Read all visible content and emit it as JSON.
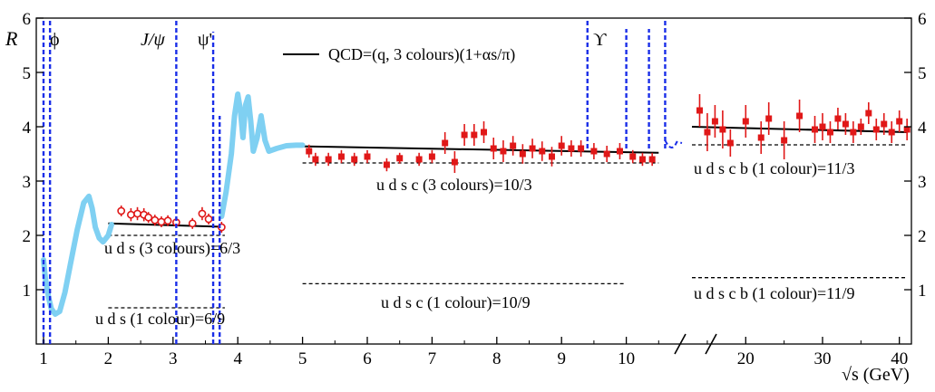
{
  "chart_data": {
    "type": "scatter",
    "title": "",
    "ylabel": "R",
    "xlabel": "√s (GeV)",
    "ylim": [
      0,
      6
    ],
    "x_axis_low": {
      "range": [
        1,
        10.8
      ],
      "ticks": [
        1,
        2,
        3,
        4,
        5,
        6,
        7,
        8,
        9,
        10
      ]
    },
    "x_axis_high": {
      "range": [
        13,
        41
      ],
      "ticks": [
        20,
        30,
        40
      ]
    },
    "y_ticks": [
      1,
      2,
      3,
      4,
      5,
      6
    ],
    "axis_break": "between 10.8 and 13 GeV (double slash)",
    "legend_text": "QCD=(q, 3 colours)(1+αs/π)",
    "resonances": [
      {
        "name": "ϕ",
        "x": 1.02
      },
      {
        "name": "J/ψ",
        "x": 3.1
      },
      {
        "name": "ψ'",
        "x": 3.69
      },
      {
        "name": "ϒ",
        "x": 9.46
      }
    ],
    "annotations": [
      {
        "text": "u d s (3 colours)=6/3",
        "y": 2.0,
        "x_range": [
          2.0,
          3.8
        ]
      },
      {
        "text": "u d s (1 colour)=6/9",
        "y": 0.667,
        "x_range": [
          2.0,
          3.8
        ]
      },
      {
        "text": "u d s c (3 colours)=10/3",
        "y": 3.333,
        "x_range": [
          5.0,
          10.5
        ]
      },
      {
        "text": "u d s c (1 colour)=10/9",
        "y": 1.111,
        "x_range": [
          5.0,
          10.0
        ]
      },
      {
        "text": "u d s c b (1 colour)=11/3",
        "y": 3.667,
        "x_range": [
          13,
          41
        ]
      },
      {
        "text": "u d s c b (1 colour)=11/9",
        "y": 1.222,
        "x_range": [
          13,
          41
        ]
      }
    ],
    "series": [
      {
        "style": "qcd-solid-line",
        "segments": [
          {
            "x": [
              2.0,
              3.7
            ],
            "y": [
              2.22,
              2.16
            ]
          },
          {
            "x": [
              5.0,
              10.5
            ],
            "y": [
              3.64,
              3.52
            ]
          },
          {
            "x": [
              13,
              41
            ],
            "y": [
              4.0,
              3.9
            ]
          }
        ]
      },
      {
        "style": "low-energy-curve",
        "x": [
          1.0,
          1.03,
          1.08,
          1.12,
          1.18,
          1.25,
          1.33,
          1.42,
          1.52,
          1.62,
          1.7,
          1.75,
          1.8,
          1.86,
          1.92,
          2.0,
          2.05
        ],
        "y": [
          1.55,
          1.2,
          0.85,
          0.65,
          0.55,
          0.6,
          0.95,
          1.5,
          2.1,
          2.6,
          2.72,
          2.5,
          2.15,
          1.95,
          1.88,
          2.0,
          2.2
        ]
      },
      {
        "style": "charm-threshold-curve",
        "x": [
          3.75,
          3.82,
          3.9,
          3.95,
          4.0,
          4.04,
          4.08,
          4.12,
          4.16,
          4.2,
          4.24,
          4.3,
          4.36,
          4.42,
          4.48,
          4.6,
          4.75,
          4.9,
          5.0
        ],
        "y": [
          2.35,
          2.8,
          3.5,
          4.2,
          4.6,
          4.3,
          3.8,
          4.4,
          4.55,
          4.1,
          3.55,
          3.8,
          4.2,
          3.75,
          3.55,
          3.6,
          3.65,
          3.66,
          3.66
        ]
      },
      {
        "style": "open-circles",
        "x": [
          2.2,
          2.35,
          2.45,
          2.55,
          2.62,
          2.72,
          2.82,
          2.92,
          3.05,
          3.3,
          3.45,
          3.55,
          3.75
        ],
        "y": [
          2.45,
          2.38,
          2.4,
          2.38,
          2.33,
          2.28,
          2.25,
          2.27,
          2.24,
          2.22,
          2.4,
          2.3,
          2.15
        ],
        "err": [
          0.1,
          0.12,
          0.12,
          0.12,
          0.1,
          0.1,
          0.1,
          0.1,
          0.1,
          0.1,
          0.12,
          0.1,
          0.1
        ]
      },
      {
        "style": "filled-squares-low",
        "x": [
          5.1,
          5.2,
          5.4,
          5.6,
          5.8,
          6.0,
          6.3,
          6.5,
          6.8,
          7.0,
          7.2,
          7.35,
          7.5,
          7.65,
          7.8,
          7.95,
          8.1,
          8.25,
          8.4,
          8.55,
          8.7,
          8.85,
          9.0,
          9.15,
          9.3,
          9.5,
          9.7,
          9.9,
          10.1,
          10.25,
          10.4
        ],
        "y": [
          3.55,
          3.4,
          3.4,
          3.45,
          3.4,
          3.45,
          3.3,
          3.42,
          3.4,
          3.45,
          3.7,
          3.35,
          3.85,
          3.85,
          3.9,
          3.6,
          3.55,
          3.65,
          3.5,
          3.6,
          3.55,
          3.45,
          3.65,
          3.6,
          3.6,
          3.55,
          3.5,
          3.55,
          3.45,
          3.4,
          3.4
        ],
        "err": [
          0.12,
          0.12,
          0.12,
          0.12,
          0.12,
          0.12,
          0.12,
          0.1,
          0.12,
          0.12,
          0.2,
          0.2,
          0.2,
          0.2,
          0.2,
          0.2,
          0.2,
          0.18,
          0.18,
          0.18,
          0.18,
          0.18,
          0.18,
          0.15,
          0.15,
          0.15,
          0.15,
          0.15,
          0.12,
          0.12,
          0.12
        ]
      },
      {
        "style": "filled-squares-high",
        "x": [
          14,
          15,
          16,
          17,
          18,
          20,
          22,
          23,
          25,
          27,
          29,
          30,
          31,
          32,
          33,
          34,
          35,
          36,
          37,
          38,
          39,
          40,
          41
        ],
        "y": [
          4.3,
          3.9,
          4.1,
          3.95,
          3.7,
          4.1,
          3.8,
          4.15,
          3.75,
          4.2,
          3.95,
          4.0,
          3.9,
          4.15,
          4.05,
          3.9,
          4.0,
          4.25,
          3.95,
          4.05,
          3.9,
          4.1,
          3.95
        ],
        "err": [
          0.3,
          0.35,
          0.3,
          0.35,
          0.25,
          0.3,
          0.3,
          0.3,
          0.35,
          0.3,
          0.25,
          0.25,
          0.2,
          0.2,
          0.2,
          0.2,
          0.15,
          0.2,
          0.2,
          0.2,
          0.2,
          0.2,
          0.2
        ]
      }
    ]
  }
}
